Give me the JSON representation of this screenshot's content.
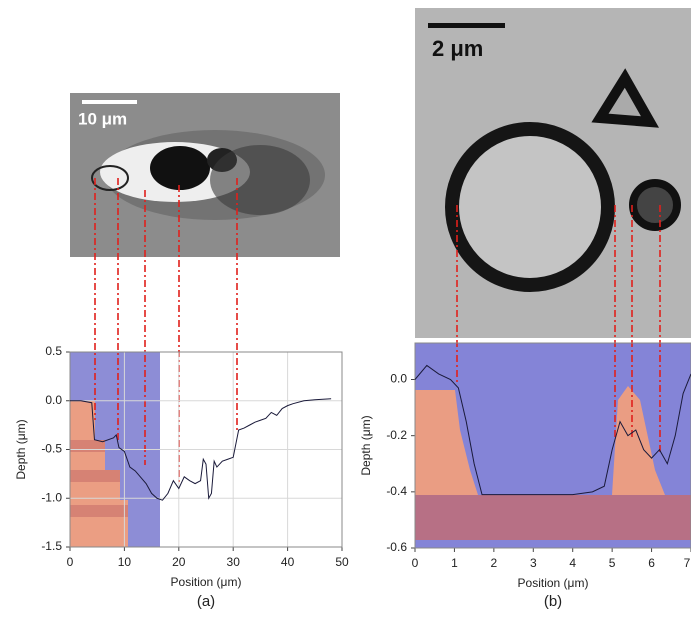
{
  "chart_data": [
    {
      "type": "line",
      "label": "(a)",
      "scale_bar": "10 μm",
      "xlabel": "Position (μm)",
      "ylabel": "Depth (μm)",
      "x": [
        0,
        2,
        4,
        4.5,
        6,
        8,
        8.5,
        9,
        10,
        11,
        12,
        14,
        15,
        16,
        17,
        18,
        19,
        20,
        21,
        22,
        23,
        24,
        24.5,
        25,
        25.5,
        26,
        26.5,
        27,
        28,
        29,
        30,
        31,
        32,
        33,
        34,
        35,
        36,
        37,
        38,
        39,
        40,
        41,
        43,
        45,
        48
      ],
      "series": [
        {
          "color": "#1a1a3a",
          "values": [
            0,
            0,
            -0.02,
            -0.4,
            -0.42,
            -0.38,
            -0.35,
            -0.48,
            -0.52,
            -0.68,
            -0.72,
            -0.85,
            -0.95,
            -1.0,
            -1.02,
            -0.95,
            -0.82,
            -0.9,
            -0.78,
            -0.82,
            -0.85,
            -0.82,
            -0.6,
            -0.65,
            -1.0,
            -0.95,
            -0.62,
            -0.68,
            -0.62,
            -0.6,
            -0.58,
            -0.3,
            -0.28,
            -0.25,
            -0.22,
            -0.2,
            -0.18,
            -0.12,
            -0.15,
            -0.08,
            -0.05,
            -0.03,
            0,
            0.01,
            0.02
          ]
        }
      ],
      "xlim": [
        0,
        50
      ],
      "xticks": [
        0,
        10,
        20,
        30,
        40,
        50
      ],
      "ylim": [
        -1.5,
        0.5
      ],
      "yticks": [
        0.5,
        {
          "value": 0,
          "label": "0.0"
        },
        -0.5,
        {
          "value": -1,
          "label": "-1.0"
        },
        -1.5
      ],
      "grid": true
    },
    {
      "type": "line",
      "label": "(b)",
      "scale_bar": "2 μm",
      "xlabel": "Position (μm)",
      "ylabel": "Depth (μm)",
      "x": [
        0,
        0.3,
        0.6,
        0.9,
        1.1,
        1.3,
        1.5,
        1.7,
        2,
        2.5,
        3,
        3.5,
        4,
        4.5,
        4.8,
        5,
        5.2,
        5.4,
        5.6,
        5.8,
        6,
        6.2,
        6.4,
        6.6,
        6.8,
        7
      ],
      "series": [
        {
          "color": "#1a1a3a",
          "values": [
            0,
            0.05,
            0.02,
            0,
            -0.03,
            -0.15,
            -0.3,
            -0.41,
            -0.41,
            -0.41,
            -0.41,
            -0.41,
            -0.41,
            -0.4,
            -0.38,
            -0.25,
            -0.15,
            -0.2,
            -0.18,
            -0.25,
            -0.28,
            -0.25,
            -0.3,
            -0.2,
            -0.05,
            0.02
          ]
        }
      ],
      "xlim": [
        0,
        7
      ],
      "xticks": [
        0,
        1,
        2,
        3,
        4,
        5,
        6,
        7
      ],
      "ylim": [
        -0.6,
        0.13
      ],
      "yticks": [
        {
          "value": 0,
          "label": "0.0"
        },
        -0.2,
        -0.4,
        -0.6
      ],
      "grid": false
    }
  ]
}
